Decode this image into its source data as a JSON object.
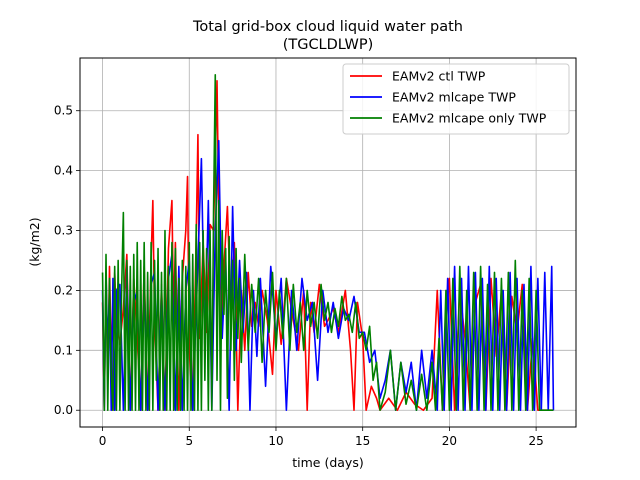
{
  "chart_data": {
    "type": "line",
    "title": [
      "Total grid-box cloud liquid water path",
      "(TGCLDLWP)"
    ],
    "xlabel": "time (days)",
    "ylabel": "(kg/m2)",
    "xlim": [
      -1.3,
      27.3
    ],
    "ylim": [
      -0.028,
      0.588
    ],
    "xticks": [
      0,
      5,
      10,
      15,
      20,
      25
    ],
    "yticks": [
      0.0,
      0.1,
      0.2,
      0.3,
      0.4,
      0.5
    ],
    "ytick_labels": [
      "0.0",
      "0.1",
      "0.2",
      "0.3",
      "0.4",
      "0.5"
    ],
    "grid": true,
    "legend": "top-right",
    "series": [
      {
        "name": "EAMv2 ctl TWP",
        "color": "#ff0000",
        "x": [
          0.0,
          0.1,
          0.2,
          0.3,
          0.4,
          0.5,
          0.6,
          0.7,
          0.8,
          0.9,
          1.0,
          1.2,
          1.4,
          1.6,
          1.8,
          2.0,
          2.2,
          2.4,
          2.6,
          2.8,
          2.9,
          3.0,
          3.2,
          3.4,
          3.6,
          3.8,
          4.0,
          4.1,
          4.2,
          4.4,
          4.6,
          4.8,
          4.9,
          5.0,
          5.2,
          5.4,
          5.5,
          5.6,
          5.8,
          6.0,
          6.2,
          6.4,
          6.6,
          6.8,
          7.0,
          7.2,
          7.4,
          7.6,
          7.8,
          8.0,
          8.2,
          8.4,
          8.6,
          8.8,
          9.0,
          9.2,
          9.5,
          9.8,
          10.0,
          10.3,
          10.6,
          11.0,
          11.3,
          11.6,
          11.8,
          12.0,
          12.2,
          12.5,
          12.8,
          13.0,
          13.3,
          13.6,
          14.0,
          14.3,
          14.5,
          14.7,
          15.0,
          15.2,
          15.5,
          15.8,
          16.0,
          16.5,
          17.0,
          17.5,
          18.0,
          18.5,
          19.0,
          19.3,
          19.6,
          19.8,
          20.0,
          20.3,
          20.6,
          20.9,
          21.2,
          21.5,
          21.8,
          22.1,
          22.4,
          22.7,
          23.0,
          23.3,
          23.6,
          23.9,
          24.2,
          24.5,
          24.8,
          25.1,
          25.4,
          25.7,
          26.0
        ],
        "values": [
          0.18,
          0.0,
          0.22,
          0.05,
          0.24,
          0.1,
          0.0,
          0.23,
          0.15,
          0.13,
          0.11,
          0.17,
          0.26,
          0.0,
          0.22,
          0.12,
          0.0,
          0.24,
          0.0,
          0.25,
          0.35,
          0.15,
          0.0,
          0.21,
          0.0,
          0.27,
          0.35,
          0.15,
          0.28,
          0.0,
          0.22,
          0.3,
          0.39,
          0.1,
          0.0,
          0.29,
          0.46,
          0.12,
          0.28,
          0.13,
          0.31,
          0.3,
          0.55,
          0.1,
          0.24,
          0.34,
          0.16,
          0.28,
          0.0,
          0.2,
          0.1,
          0.23,
          0.14,
          0.18,
          0.14,
          0.2,
          0.15,
          0.06,
          0.2,
          0.11,
          0.22,
          0.15,
          0.1,
          0.2,
          0.0,
          0.18,
          0.13,
          0.21,
          0.14,
          0.15,
          0.17,
          0.13,
          0.2,
          0.1,
          0.0,
          0.18,
          0.12,
          0.0,
          0.04,
          0.02,
          0.0,
          0.02,
          0.0,
          0.03,
          0.01,
          0.0,
          0.02,
          0.2,
          0.0,
          0.15,
          0.22,
          0.0,
          0.2,
          0.12,
          0.0,
          0.18,
          0.21,
          0.0,
          0.22,
          0.09,
          0.2,
          0.0,
          0.19,
          0.13,
          0.21,
          0.0,
          0.12,
          0.0,
          0.0,
          0.0,
          0.0
        ]
      },
      {
        "name": "EAMv2 mlcape TWP",
        "color": "#0000ff",
        "x": [
          0.0,
          0.1,
          0.2,
          0.3,
          0.4,
          0.5,
          0.6,
          0.7,
          0.8,
          1.0,
          1.2,
          1.4,
          1.6,
          1.8,
          2.0,
          2.2,
          2.4,
          2.6,
          2.8,
          3.0,
          3.2,
          3.4,
          3.6,
          3.8,
          4.0,
          4.2,
          4.4,
          4.6,
          4.8,
          5.0,
          5.2,
          5.5,
          5.7,
          5.9,
          6.1,
          6.3,
          6.5,
          6.7,
          6.9,
          7.1,
          7.3,
          7.5,
          7.7,
          7.9,
          8.1,
          8.3,
          8.5,
          8.7,
          8.9,
          9.1,
          9.4,
          9.7,
          10.0,
          10.3,
          10.6,
          10.9,
          11.2,
          11.5,
          11.8,
          12.1,
          12.4,
          12.7,
          13.0,
          13.3,
          13.6,
          13.9,
          14.2,
          14.5,
          14.8,
          15.1,
          15.4,
          15.7,
          16.0,
          16.3,
          16.6,
          16.9,
          17.2,
          17.5,
          17.8,
          18.1,
          18.4,
          18.7,
          19.0,
          19.3,
          19.5,
          19.7,
          19.9,
          20.1,
          20.3,
          20.5,
          20.7,
          20.9,
          21.1,
          21.3,
          21.5,
          21.7,
          21.9,
          22.1,
          22.3,
          22.5,
          22.7,
          22.9,
          23.1,
          23.3,
          23.5,
          23.7,
          23.9,
          24.1,
          24.3,
          24.5,
          24.7,
          24.9,
          25.1,
          25.3,
          25.5,
          25.7,
          25.9,
          26.0
        ],
        "values": [
          0.2,
          0.0,
          0.23,
          0.1,
          0.2,
          0.0,
          0.22,
          0.0,
          0.2,
          0.21,
          0.0,
          0.24,
          0.0,
          0.2,
          0.18,
          0.0,
          0.22,
          0.0,
          0.21,
          0.23,
          0.0,
          0.2,
          0.0,
          0.22,
          0.26,
          0.0,
          0.24,
          0.0,
          0.2,
          0.25,
          0.0,
          0.25,
          0.42,
          0.1,
          0.35,
          0.0,
          0.3,
          0.45,
          0.12,
          0.25,
          0.0,
          0.34,
          0.1,
          0.25,
          0.13,
          0.23,
          0.0,
          0.2,
          0.09,
          0.22,
          0.04,
          0.24,
          0.12,
          0.22,
          0.0,
          0.2,
          0.1,
          0.22,
          0.15,
          0.18,
          0.05,
          0.2,
          0.13,
          0.18,
          0.12,
          0.17,
          0.15,
          0.19,
          0.13,
          0.13,
          0.08,
          0.1,
          0.02,
          0.05,
          0.1,
          0.0,
          0.08,
          0.03,
          0.08,
          0.0,
          0.1,
          0.02,
          0.1,
          0.0,
          0.2,
          0.0,
          0.22,
          0.0,
          0.24,
          0.0,
          0.22,
          0.0,
          0.24,
          0.0,
          0.23,
          0.0,
          0.22,
          0.0,
          0.24,
          0.0,
          0.22,
          0.0,
          0.2,
          0.0,
          0.23,
          0.0,
          0.22,
          0.0,
          0.21,
          0.0,
          0.24,
          0.0,
          0.22,
          0.0,
          0.23,
          0.0,
          0.24,
          0.0
        ]
      },
      {
        "name": "EAMv2 mlcape only TWP",
        "color": "#008000",
        "x": [
          0.0,
          0.1,
          0.2,
          0.3,
          0.4,
          0.5,
          0.6,
          0.7,
          0.8,
          0.9,
          1.0,
          1.1,
          1.2,
          1.3,
          1.4,
          1.5,
          1.6,
          1.7,
          1.8,
          1.9,
          2.0,
          2.1,
          2.2,
          2.3,
          2.4,
          2.5,
          2.6,
          2.7,
          2.8,
          2.9,
          3.0,
          3.1,
          3.2,
          3.3,
          3.4,
          3.5,
          3.6,
          3.7,
          3.8,
          3.9,
          4.0,
          4.1,
          4.2,
          4.3,
          4.4,
          4.5,
          4.6,
          4.7,
          4.8,
          4.9,
          5.0,
          5.1,
          5.2,
          5.3,
          5.4,
          5.5,
          5.6,
          5.7,
          5.8,
          5.9,
          6.0,
          6.1,
          6.2,
          6.3,
          6.4,
          6.5,
          6.6,
          6.7,
          6.8,
          6.9,
          7.0,
          7.1,
          7.2,
          7.3,
          7.4,
          7.5,
          7.6,
          7.7,
          7.8,
          7.9,
          8.0,
          8.2,
          8.4,
          8.6,
          8.8,
          9.0,
          9.2,
          9.4,
          9.6,
          9.8,
          10.0,
          10.2,
          10.4,
          10.6,
          10.8,
          11.0,
          11.2,
          11.4,
          11.6,
          11.8,
          12.0,
          12.2,
          12.4,
          12.6,
          12.8,
          13.0,
          13.2,
          13.4,
          13.6,
          13.8,
          14.0,
          14.2,
          14.4,
          14.6,
          14.8,
          15.0,
          15.2,
          15.4,
          15.6,
          15.8,
          16.0,
          16.3,
          16.6,
          16.9,
          17.2,
          17.5,
          17.8,
          18.1,
          18.4,
          18.7,
          19.0,
          19.2,
          19.4,
          19.6,
          19.8,
          20.0,
          20.2,
          20.4,
          20.6,
          20.8,
          21.0,
          21.2,
          21.4,
          21.6,
          21.8,
          22.0,
          22.2,
          22.4,
          22.6,
          22.8,
          23.0,
          23.2,
          23.4,
          23.6,
          23.8,
          24.0,
          24.2,
          24.4,
          24.6,
          24.8,
          25.0,
          25.2,
          25.4,
          25.6,
          25.8,
          26.0
        ],
        "values": [
          0.23,
          0.0,
          0.26,
          0.0,
          0.22,
          0.06,
          0.0,
          0.24,
          0.0,
          0.25,
          0.0,
          0.2,
          0.33,
          0.0,
          0.25,
          0.0,
          0.24,
          0.0,
          0.26,
          0.0,
          0.28,
          0.0,
          0.25,
          0.0,
          0.28,
          0.0,
          0.23,
          0.0,
          0.28,
          0.0,
          0.25,
          0.05,
          0.27,
          0.0,
          0.23,
          0.0,
          0.3,
          0.0,
          0.24,
          0.0,
          0.28,
          0.0,
          0.27,
          0.0,
          0.22,
          0.0,
          0.25,
          0.0,
          0.24,
          0.0,
          0.28,
          0.0,
          0.26,
          0.0,
          0.31,
          0.0,
          0.28,
          0.0,
          0.3,
          0.05,
          0.27,
          0.0,
          0.3,
          0.0,
          0.33,
          0.56,
          0.05,
          0.35,
          0.0,
          0.3,
          0.16,
          0.27,
          0.02,
          0.29,
          0.1,
          0.25,
          0.05,
          0.27,
          0.12,
          0.22,
          0.08,
          0.26,
          0.1,
          0.21,
          0.13,
          0.22,
          0.08,
          0.2,
          0.13,
          0.23,
          0.1,
          0.2,
          0.12,
          0.22,
          0.1,
          0.21,
          0.13,
          0.18,
          0.1,
          0.2,
          0.14,
          0.18,
          0.12,
          0.21,
          0.15,
          0.18,
          0.13,
          0.17,
          0.14,
          0.19,
          0.15,
          0.16,
          0.13,
          0.18,
          0.12,
          0.13,
          0.1,
          0.14,
          0.05,
          0.08,
          0.0,
          0.03,
          0.1,
          0.0,
          0.08,
          0.01,
          0.05,
          0.0,
          0.06,
          0.0,
          0.08,
          0.0,
          0.12,
          0.0,
          0.2,
          0.0,
          0.22,
          0.0,
          0.24,
          0.0,
          0.2,
          0.0,
          0.23,
          0.0,
          0.24,
          0.0,
          0.21,
          0.0,
          0.23,
          0.0,
          0.22,
          0.0,
          0.23,
          0.0,
          0.25,
          0.0,
          0.2,
          0.0,
          0.22,
          0.0,
          0.2,
          0.0,
          0.0,
          0.0,
          0.0,
          0.0
        ]
      }
    ]
  }
}
